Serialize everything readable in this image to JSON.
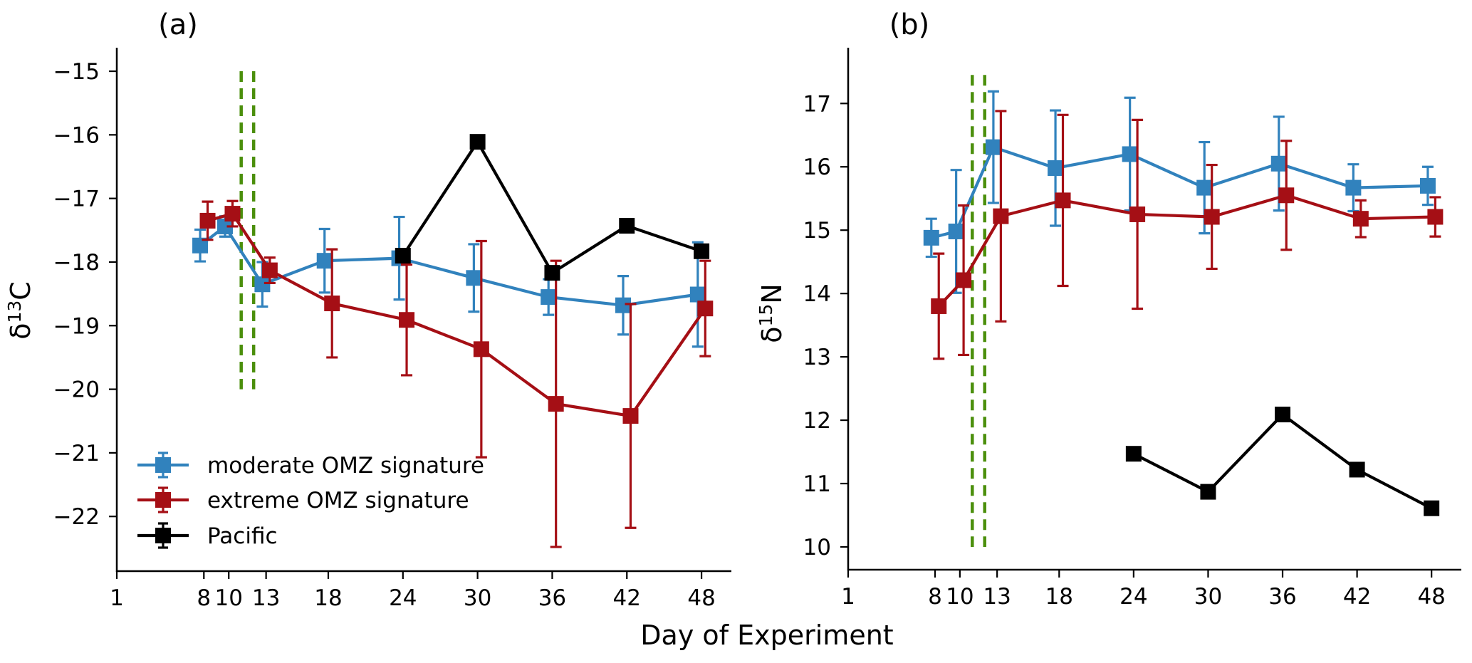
{
  "figure": {
    "xlabel": "Day of Experiment"
  },
  "colors": {
    "moderate": "#3182bd",
    "extreme": "#a50f15",
    "pacific": "#000000",
    "event_lines": "#4b8f0c"
  },
  "legend": {
    "placement": "lower-left of panel (a)",
    "entries": [
      {
        "key": "moderate",
        "label": "moderate OMZ signature"
      },
      {
        "key": "extreme",
        "label": "extreme OMZ signature"
      },
      {
        "key": "pacific",
        "label": "Pacific"
      }
    ]
  },
  "chart_data": [
    {
      "type": "line",
      "panel_label": "(a)",
      "title": "",
      "xlabel": "Day of Experiment",
      "ylabel": "δ13C",
      "ylabel_main": "δ",
      "ylabel_sup": "13",
      "ylabel_tail": "C",
      "xlim": [
        1,
        50.4
      ],
      "ylim": [
        -22.86,
        -14.63
      ],
      "x_ticks": [
        1,
        8,
        10,
        13,
        18,
        24,
        30,
        36,
        42,
        48
      ],
      "x_tick_labels": [
        "1",
        "8",
        "10",
        "13",
        "18",
        "24",
        "30",
        "36",
        "42",
        "48"
      ],
      "y_ticks": [
        -15,
        -16,
        -17,
        -18,
        -19,
        -20,
        -21,
        -22
      ],
      "y_tick_labels": [
        "−15",
        "−16",
        "−17",
        "−18",
        "−19",
        "−20",
        "−21",
        "−22"
      ],
      "grid": false,
      "vertical_lines": {
        "x": [
          11,
          12
        ],
        "y_range": [
          -20,
          -15
        ],
        "style": "dashed"
      },
      "series": [
        {
          "key": "moderate",
          "name": "moderate OMZ signature",
          "x_jitter": -0.3,
          "x": [
            8,
            10,
            13,
            18,
            24,
            30,
            36,
            42,
            48
          ],
          "y": [
            -17.74,
            -17.44,
            -18.35,
            -17.98,
            -17.94,
            -18.25,
            -18.55,
            -18.68,
            -18.51
          ],
          "yerr": [
            0.25,
            0.16,
            0.35,
            0.5,
            0.65,
            0.53,
            0.28,
            0.46,
            0.82
          ]
        },
        {
          "key": "extreme",
          "name": "extreme OMZ signature",
          "x_jitter": 0.3,
          "x": [
            8,
            10,
            13,
            18,
            24,
            30,
            36,
            42,
            48
          ],
          "y": [
            -17.35,
            -17.24,
            -18.13,
            -18.65,
            -18.91,
            -19.37,
            -20.23,
            -20.42,
            -18.73
          ],
          "yerr": [
            0.3,
            0.2,
            0.2,
            0.85,
            0.87,
            1.7,
            2.25,
            1.76,
            0.75
          ]
        },
        {
          "key": "pacific",
          "name": "Pacific",
          "x_jitter": 0,
          "x": [
            24,
            30,
            36,
            42,
            48
          ],
          "y": [
            -17.9,
            -16.11,
            -18.17,
            -17.43,
            -17.83
          ],
          "yerr": [
            0,
            0,
            0,
            0,
            0
          ]
        }
      ]
    },
    {
      "type": "line",
      "panel_label": "(b)",
      "title": "",
      "xlabel": "Day of Experiment",
      "ylabel": "δ15N",
      "ylabel_main": "δ",
      "ylabel_sup": "15",
      "ylabel_tail": "N",
      "xlim": [
        1,
        50.4
      ],
      "ylim": [
        9.64,
        17.88
      ],
      "x_ticks": [
        1,
        8,
        10,
        13,
        18,
        24,
        30,
        36,
        42,
        48
      ],
      "x_tick_labels": [
        "1",
        "8",
        "10",
        "13",
        "18",
        "24",
        "30",
        "36",
        "42",
        "48"
      ],
      "y_ticks": [
        10,
        11,
        12,
        13,
        14,
        15,
        16,
        17
      ],
      "y_tick_labels": [
        "10",
        "11",
        "12",
        "13",
        "14",
        "15",
        "16",
        "17"
      ],
      "grid": false,
      "vertical_lines": {
        "x": [
          11,
          12
        ],
        "y_range": [
          10,
          17.45
        ],
        "style": "dashed"
      },
      "series": [
        {
          "key": "moderate",
          "name": "moderate OMZ signature",
          "x_jitter": -0.3,
          "x": [
            8,
            10,
            13,
            18,
            24,
            30,
            36,
            42,
            48
          ],
          "y": [
            14.88,
            14.98,
            16.31,
            15.98,
            16.2,
            15.67,
            16.05,
            15.67,
            15.7
          ],
          "yerr": [
            0.3,
            0.97,
            0.88,
            0.91,
            0.89,
            0.72,
            0.74,
            0.37,
            0.3
          ]
        },
        {
          "key": "extreme",
          "name": "extreme OMZ signature",
          "x_jitter": 0.3,
          "x": [
            8,
            10,
            13,
            18,
            24,
            30,
            36,
            42,
            48
          ],
          "y": [
            13.8,
            14.21,
            15.22,
            15.47,
            15.25,
            15.21,
            15.55,
            15.18,
            15.21
          ],
          "yerr": [
            0.83,
            1.18,
            1.66,
            1.35,
            1.49,
            0.82,
            0.86,
            0.29,
            0.31
          ]
        },
        {
          "key": "pacific",
          "name": "Pacific",
          "x_jitter": 0,
          "x": [
            24,
            30,
            36,
            42,
            48
          ],
          "y": [
            11.47,
            10.87,
            12.09,
            11.22,
            10.61
          ],
          "yerr": [
            0,
            0,
            0,
            0,
            0
          ]
        }
      ]
    }
  ]
}
